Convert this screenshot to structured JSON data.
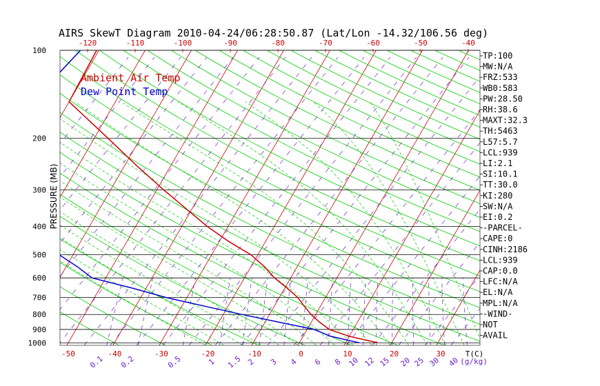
{
  "chart_data": {
    "type": "line",
    "title": "AIRS SkewT Diagram 2010-04-24/06:28:50.87 (Lat/Lon -14.32/106.56 deg)",
    "ylabel": "PRESSURE (MB)",
    "pressure_ticks": [
      100,
      200,
      300,
      400,
      500,
      600,
      700,
      800,
      900,
      1000
    ],
    "pressure_range": [
      100,
      1020
    ],
    "y_scale": "log",
    "top_temperature_ticks": [
      -120,
      -110,
      -100,
      -90,
      -80,
      -70,
      -60,
      -50,
      -40
    ],
    "bottom_temperature_ticks": [
      -50,
      -40,
      -30,
      -20,
      -10,
      0,
      10,
      20,
      30
    ],
    "bottom_axis_unit": "T(C)",
    "mixing_ratio_labels": [
      "0.1",
      "0.2",
      "0.5",
      "1",
      "1.5",
      "2",
      "3",
      "4",
      "6",
      "8",
      "10",
      "12",
      "15",
      "20",
      "25",
      "30",
      "40"
    ],
    "mixing_ratio_unit": "(g/kg)",
    "legend": [
      "Ambient Air Temp",
      "Dew Point Temp"
    ],
    "series": [
      {
        "name": "Ambient Air Temp",
        "color": "#cc0000",
        "points": [
          [
            100,
            -80.5
          ],
          [
            150,
            -80
          ],
          [
            200,
            -67
          ],
          [
            250,
            -57
          ],
          [
            300,
            -48.5
          ],
          [
            350,
            -41
          ],
          [
            400,
            -34.5
          ],
          [
            450,
            -28
          ],
          [
            500,
            -21.5
          ],
          [
            550,
            -17
          ],
          [
            600,
            -13.5
          ],
          [
            650,
            -9.5
          ],
          [
            700,
            -6
          ],
          [
            750,
            -3.5
          ],
          [
            800,
            -1
          ],
          [
            850,
            1.8
          ],
          [
            900,
            4.8
          ],
          [
            950,
            10
          ],
          [
            1000,
            17
          ]
        ]
      },
      {
        "name": "Dew Point Temp",
        "color": "#0000cc",
        "points": [
          [
            100,
            -84
          ],
          [
            150,
            -88
          ],
          [
            200,
            -84
          ],
          [
            250,
            -87
          ],
          [
            300,
            -86
          ],
          [
            350,
            -81
          ],
          [
            400,
            -75
          ],
          [
            450,
            -69
          ],
          [
            500,
            -63
          ],
          [
            550,
            -57.5
          ],
          [
            600,
            -53
          ],
          [
            650,
            -43
          ],
          [
            700,
            -34.5
          ],
          [
            750,
            -25
          ],
          [
            800,
            -16
          ],
          [
            850,
            -7
          ],
          [
            900,
            1.5
          ],
          [
            950,
            6
          ],
          [
            1000,
            13
          ]
        ]
      }
    ],
    "indices": [
      "TP:100",
      "MW:N/A",
      "FRZ:533",
      "WB0:583",
      "PW:28.50",
      "RH:38.6",
      "MAXT:32.3",
      "TH:5463",
      "L57:5.7",
      "LCL:939",
      "LI:2.1",
      "SI:10.1",
      "TT:30.0",
      "KI:280",
      "SW:N/A",
      "EI:0.2",
      "-PARCEL-",
      "CAPE:0",
      "CINH:2186",
      "LCL:939",
      "CAP:0.0",
      "LFC:N/A",
      "EL:N/A",
      "MPL:N/A",
      "-WIND-",
      "NOT",
      "AVAIL"
    ],
    "colors": {
      "isotherm": "#cc0000",
      "dry_adiabat": "#00cc00",
      "moist_adiabat": "#00cc00",
      "mixing_ratio": "#6a1fc9",
      "isobar": "#000000"
    }
  }
}
